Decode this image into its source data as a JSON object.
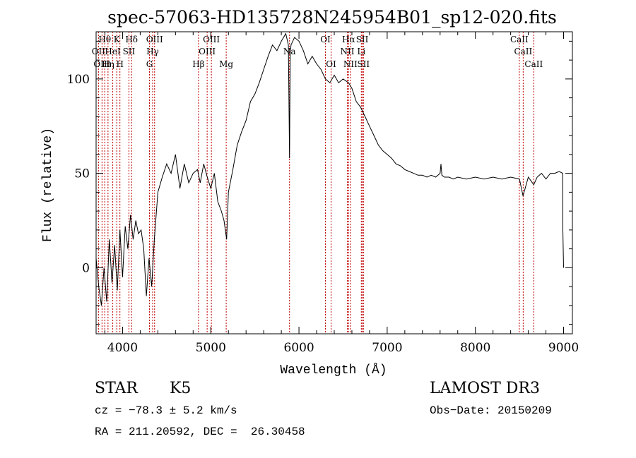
{
  "chart_data": {
    "type": "line",
    "title": "spec-57063-HD135728N245954B01_sp12-020.fits",
    "xlabel": "Wavelength (Å)",
    "ylabel": "Flux (relative)",
    "xlim": [
      3700,
      9100
    ],
    "ylim": [
      -35,
      125
    ],
    "x_ticks": [
      4000,
      5000,
      6000,
      7000,
      8000,
      9000
    ],
    "y_ticks": [
      0,
      50,
      100
    ],
    "grid": false,
    "series": [
      {
        "x": [
          3700,
          3730,
          3760,
          3790,
          3820,
          3850,
          3880,
          3910,
          3940,
          3970,
          4000,
          4030,
          4060,
          4090,
          4120,
          4150,
          4180,
          4210,
          4240,
          4270,
          4300,
          4330,
          4360,
          4400,
          4450,
          4500,
          4550,
          4600,
          4650,
          4700,
          4750,
          4800,
          4850,
          4880,
          4920,
          4960,
          5000,
          5040,
          5080,
          5120,
          5150,
          5180,
          5200,
          5250,
          5300,
          5350,
          5400,
          5450,
          5500,
          5550,
          5600,
          5650,
          5700,
          5750,
          5800,
          5850,
          5880,
          5893,
          5900,
          5910,
          5950,
          6000,
          6050,
          6100,
          6150,
          6200,
          6250,
          6300,
          6350,
          6400,
          6450,
          6500,
          6563,
          6600,
          6650,
          6700,
          6750,
          6800,
          6850,
          6900,
          6950,
          7000,
          7050,
          7100,
          7150,
          7200,
          7250,
          7300,
          7350,
          7400,
          7450,
          7500,
          7550,
          7600,
          7610,
          7620,
          7650,
          7700,
          7750,
          7800,
          7900,
          8000,
          8100,
          8200,
          8300,
          8400,
          8500,
          8540,
          8600,
          8662,
          8700,
          8750,
          8800,
          8850,
          8900,
          8950,
          8990,
          8992,
          9000
        ],
        "y": [
          5,
          -10,
          -20,
          0,
          -18,
          15,
          -8,
          12,
          -12,
          20,
          -5,
          22,
          10,
          28,
          15,
          25,
          18,
          20,
          10,
          -15,
          5,
          -10,
          15,
          40,
          48,
          55,
          50,
          60,
          42,
          55,
          45,
          50,
          52,
          45,
          55,
          48,
          42,
          50,
          35,
          30,
          25,
          15,
          40,
          52,
          65,
          72,
          78,
          88,
          92,
          98,
          105,
          112,
          118,
          115,
          120,
          124,
          118,
          58,
          112,
          118,
          122,
          120,
          115,
          108,
          112,
          108,
          105,
          100,
          98,
          102,
          98,
          100,
          98,
          95,
          88,
          85,
          80,
          75,
          70,
          65,
          62,
          60,
          58,
          55,
          54,
          52,
          51,
          50,
          49,
          49,
          48,
          49,
          48,
          50,
          55,
          49,
          48,
          48,
          47,
          48,
          47,
          48,
          47,
          48,
          47,
          48,
          47,
          38,
          48,
          44,
          48,
          50,
          47,
          50,
          50,
          51,
          50,
          20,
          0
        ]
      }
    ],
    "lines": [
      {
        "label": "Hθ",
        "x": 3798,
        "row": 0
      },
      {
        "label": "OII",
        "x": 3727,
        "row": 1
      },
      {
        "label": "OIII",
        "x": 3767,
        "row": 2
      },
      {
        "label": "K",
        "x": 3934,
        "row": 0
      },
      {
        "label": "HeI",
        "x": 3889,
        "row": 1
      },
      {
        "label": "Hη",
        "x": 3835,
        "row": 2
      },
      {
        "label": "SII",
        "x": 4072,
        "row": 1
      },
      {
        "label": "H",
        "x": 3970,
        "row": 2
      },
      {
        "label": "Hδ",
        "x": 4102,
        "row": 0
      },
      {
        "label": "OIII",
        "x": 4363,
        "row": 0
      },
      {
        "label": "Hγ",
        "x": 4341,
        "row": 1
      },
      {
        "label": "G",
        "x": 4305,
        "row": 2
      },
      {
        "label": "Hβ",
        "x": 4861,
        "row": 2
      },
      {
        "label": "OIII",
        "x": 5007,
        "row": 0
      },
      {
        "label": "OIII",
        "x": 4959,
        "row": 1
      },
      {
        "label": "Mg",
        "x": 5175,
        "row": 2
      },
      {
        "label": "Na",
        "x": 5893,
        "row": 1
      },
      {
        "label": "OI",
        "x": 6300,
        "row": 0
      },
      {
        "label": "OI",
        "x": 6364,
        "row": 2
      },
      {
        "label": "Hα",
        "x": 6563,
        "row": 0
      },
      {
        "label": "NII",
        "x": 6548,
        "row": 1
      },
      {
        "label": "NII",
        "x": 6583,
        "row": 2
      },
      {
        "label": "SII",
        "x": 6717,
        "row": 0
      },
      {
        "label": "Li",
        "x": 6707,
        "row": 1
      },
      {
        "label": "SII",
        "x": 6731,
        "row": 2
      },
      {
        "label": "CaII",
        "x": 8498,
        "row": 0
      },
      {
        "label": "CaII",
        "x": 8542,
        "row": 1
      },
      {
        "label": "CaII",
        "x": 8662,
        "row": 2
      }
    ]
  },
  "info": {
    "class": "STAR",
    "subclass": "K5",
    "survey": "LAMOST DR3",
    "cz": "cz = −78.3 ± 5.2 km/s",
    "obs_date": "Obs−Date: 20150209",
    "coords": "RA = 211.20592, DEC =  26.30458"
  }
}
